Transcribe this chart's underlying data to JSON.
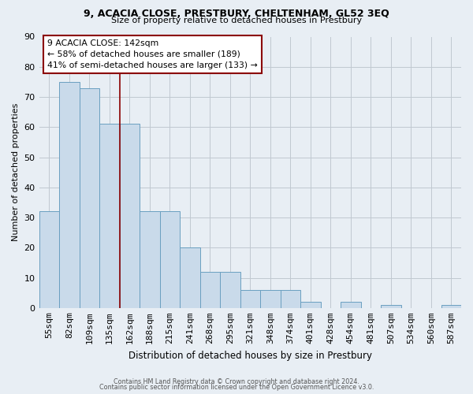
{
  "title_line1": "9, ACACIA CLOSE, PRESTBURY, CHELTENHAM, GL52 3EQ",
  "title_line2": "Size of property relative to detached houses in Prestbury",
  "xlabel": "Distribution of detached houses by size in Prestbury",
  "ylabel": "Number of detached properties",
  "categories": [
    "55sqm",
    "82sqm",
    "109sqm",
    "135sqm",
    "162sqm",
    "188sqm",
    "215sqm",
    "241sqm",
    "268sqm",
    "295sqm",
    "321sqm",
    "348sqm",
    "374sqm",
    "401sqm",
    "428sqm",
    "454sqm",
    "481sqm",
    "507sqm",
    "534sqm",
    "560sqm",
    "587sqm"
  ],
  "values": [
    32,
    75,
    73,
    61,
    61,
    32,
    32,
    20,
    12,
    12,
    6,
    6,
    6,
    2,
    0,
    2,
    0,
    1,
    0,
    0,
    1
  ],
  "bar_color": "#c9daea",
  "bar_edge_color": "#6a9fc0",
  "ylim": [
    0,
    90
  ],
  "yticks": [
    0,
    10,
    20,
    30,
    40,
    50,
    60,
    70,
    80,
    90
  ],
  "property_line_x": 3.5,
  "annotation_box_text": "9 ACACIA CLOSE: 142sqm\n← 58% of detached houses are smaller (189)\n41% of semi-detached houses are larger (133) →",
  "footer_line1": "Contains HM Land Registry data © Crown copyright and database right 2024.",
  "footer_line2": "Contains public sector information licensed under the Open Government Licence v3.0.",
  "background_color": "#e8eef4",
  "plot_bg_color": "#e8eef4",
  "grid_color": "#c0c8d0"
}
